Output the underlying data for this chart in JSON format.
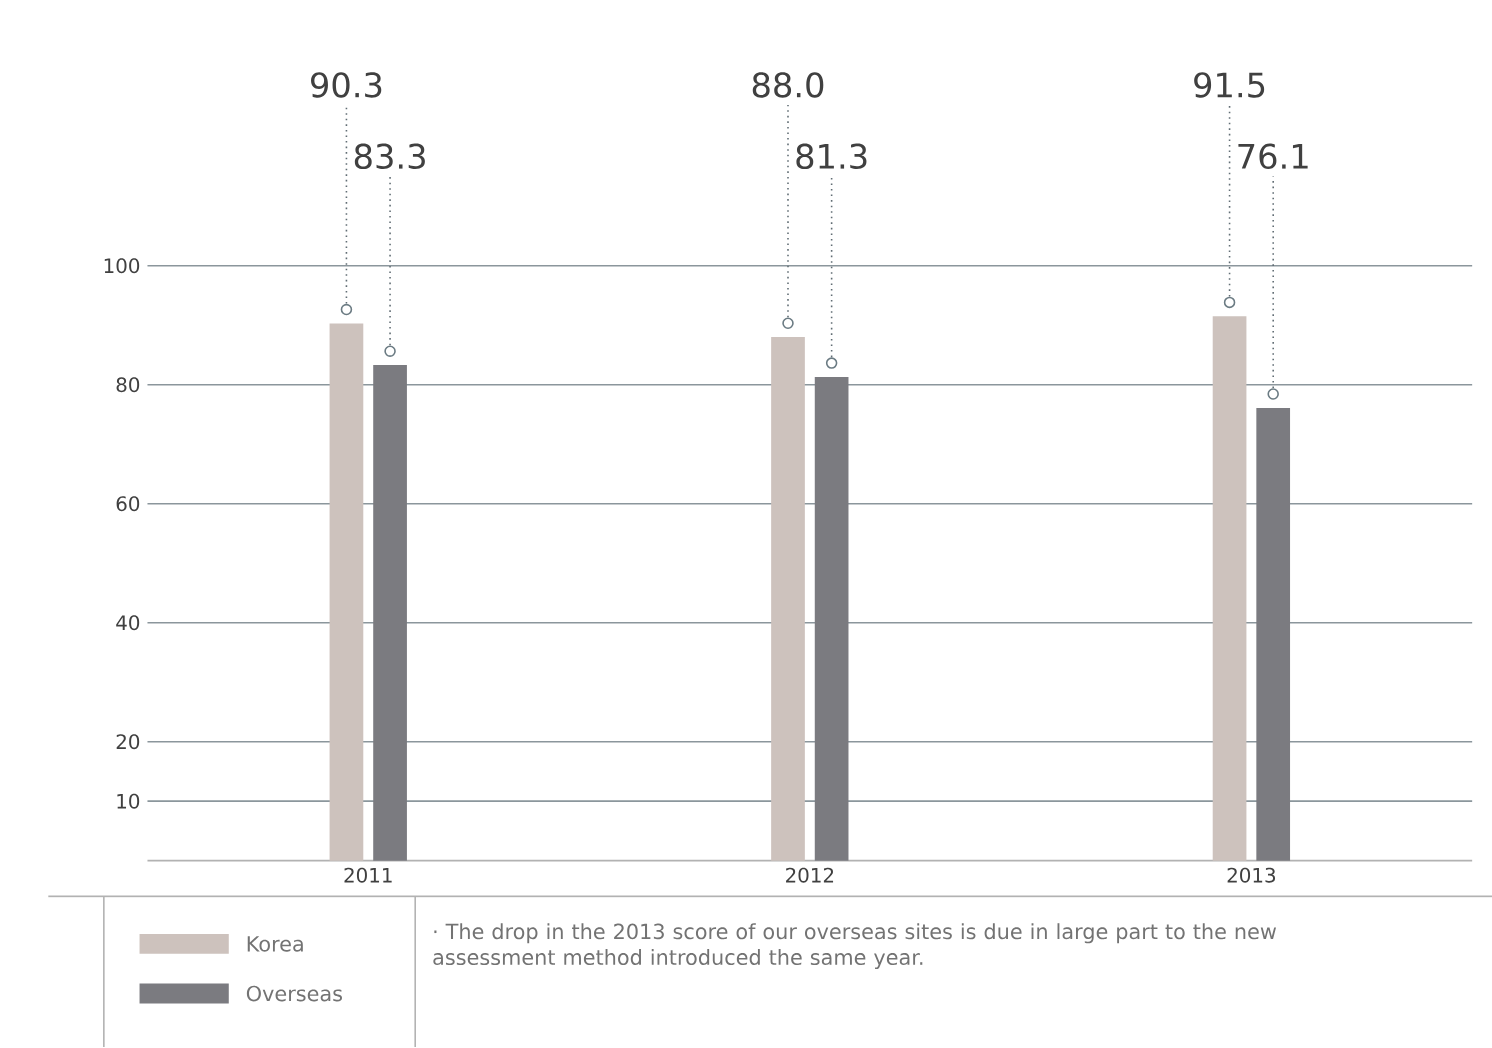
{
  "chart_data": {
    "type": "bar",
    "categories": [
      "2011",
      "2012",
      "2013"
    ],
    "series": [
      {
        "name": "Korea",
        "color": "#cdc2bd",
        "values": [
          90.3,
          88.0,
          91.5
        ],
        "value_labels": [
          "90.3",
          "88.0",
          "91.5"
        ]
      },
      {
        "name": "Overseas",
        "color": "#7b7b80",
        "values": [
          83.3,
          81.3,
          76.1
        ],
        "value_labels": [
          "83.3",
          "81.3",
          "76.1"
        ]
      }
    ],
    "ylim": [
      0,
      100
    ],
    "yticks": [
      10,
      20,
      40,
      60,
      80,
      100
    ],
    "grid": "y",
    "legend": "bottom left",
    "annotations": [
      "· The drop in the 2013 score of our overseas sites is due in large part to the new assessment method introduced the same year."
    ]
  }
}
